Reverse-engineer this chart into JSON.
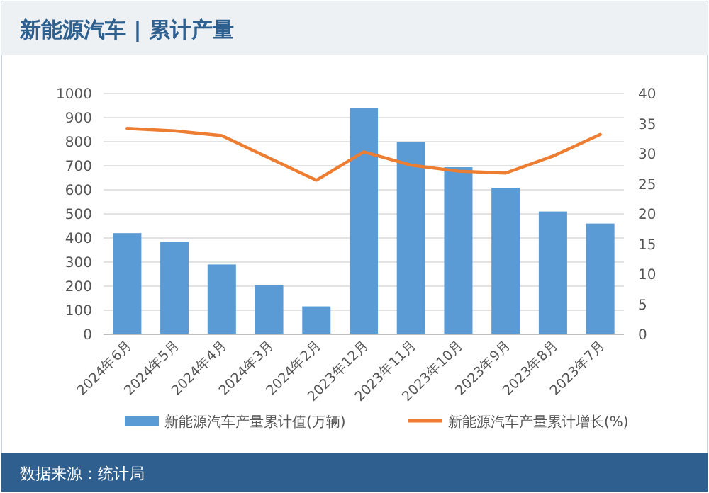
{
  "chart_data": {
    "type": "bar",
    "title": "新能源汽车 | 累计产量",
    "categories": [
      "2024年6月",
      "2024年5月",
      "2024年4月",
      "2024年3月",
      "2024年2月",
      "2023年12月",
      "2023年11月",
      "2023年10月",
      "2023年9月",
      "2023年8月",
      "2023年7月"
    ],
    "series": [
      {
        "name": "新能源汽车产量累计值(万辆)",
        "color": "#5b9bd5",
        "values": [
          420,
          384,
          290,
          206,
          116,
          941,
          800,
          694,
          608,
          510,
          460
        ]
      },
      {
        "name": "新能源汽车产量累计增长(%)",
        "type": "line",
        "axis": "y2",
        "color": "#ed7d31",
        "values": [
          34.2,
          33.8,
          33.0,
          29.3,
          25.6,
          30.3,
          28.1,
          27.1,
          26.8,
          29.6,
          33.2
        ]
      }
    ],
    "ylim": [
      0,
      1000
    ],
    "yticks": [
      0,
      100,
      200,
      300,
      400,
      500,
      600,
      700,
      800,
      900,
      1000
    ],
    "y2lim": [
      0,
      40
    ],
    "y2ticks": [
      0,
      5,
      10,
      15,
      20,
      25,
      30,
      35,
      40
    ],
    "grid": "y",
    "legend": "bottom",
    "marker": "none",
    "annotations": [
      "数据来源：统计局"
    ]
  }
}
